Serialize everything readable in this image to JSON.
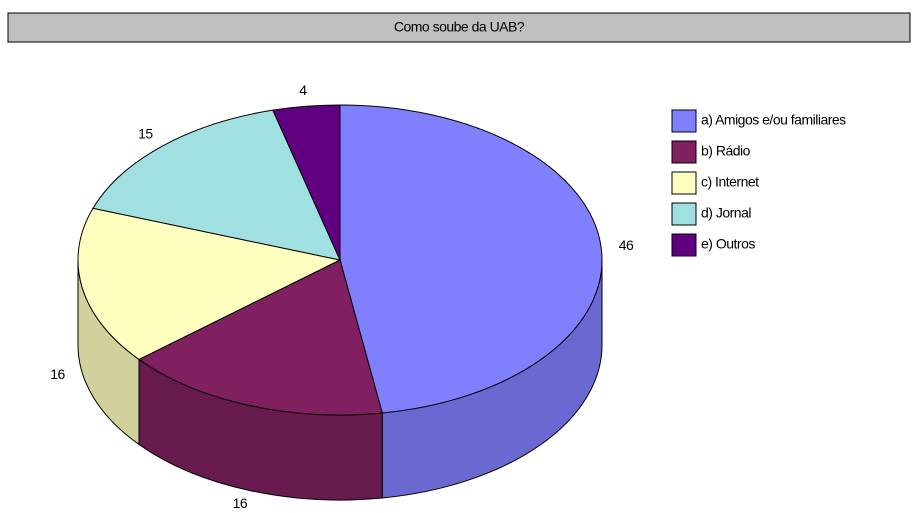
{
  "chart_data": {
    "type": "pie3d",
    "title": "Como soube da UAB?",
    "categories": [
      "a) Amigos e/ou familiares",
      "b) Rádio",
      "c) Internet",
      "d) Jornal",
      "e) Outros"
    ],
    "values": [
      46,
      16,
      16,
      15,
      4
    ],
    "colors": [
      "#8080ff",
      "#802060",
      "#ffffc0",
      "#a0e0e0",
      "#600080"
    ],
    "legend": "right"
  }
}
